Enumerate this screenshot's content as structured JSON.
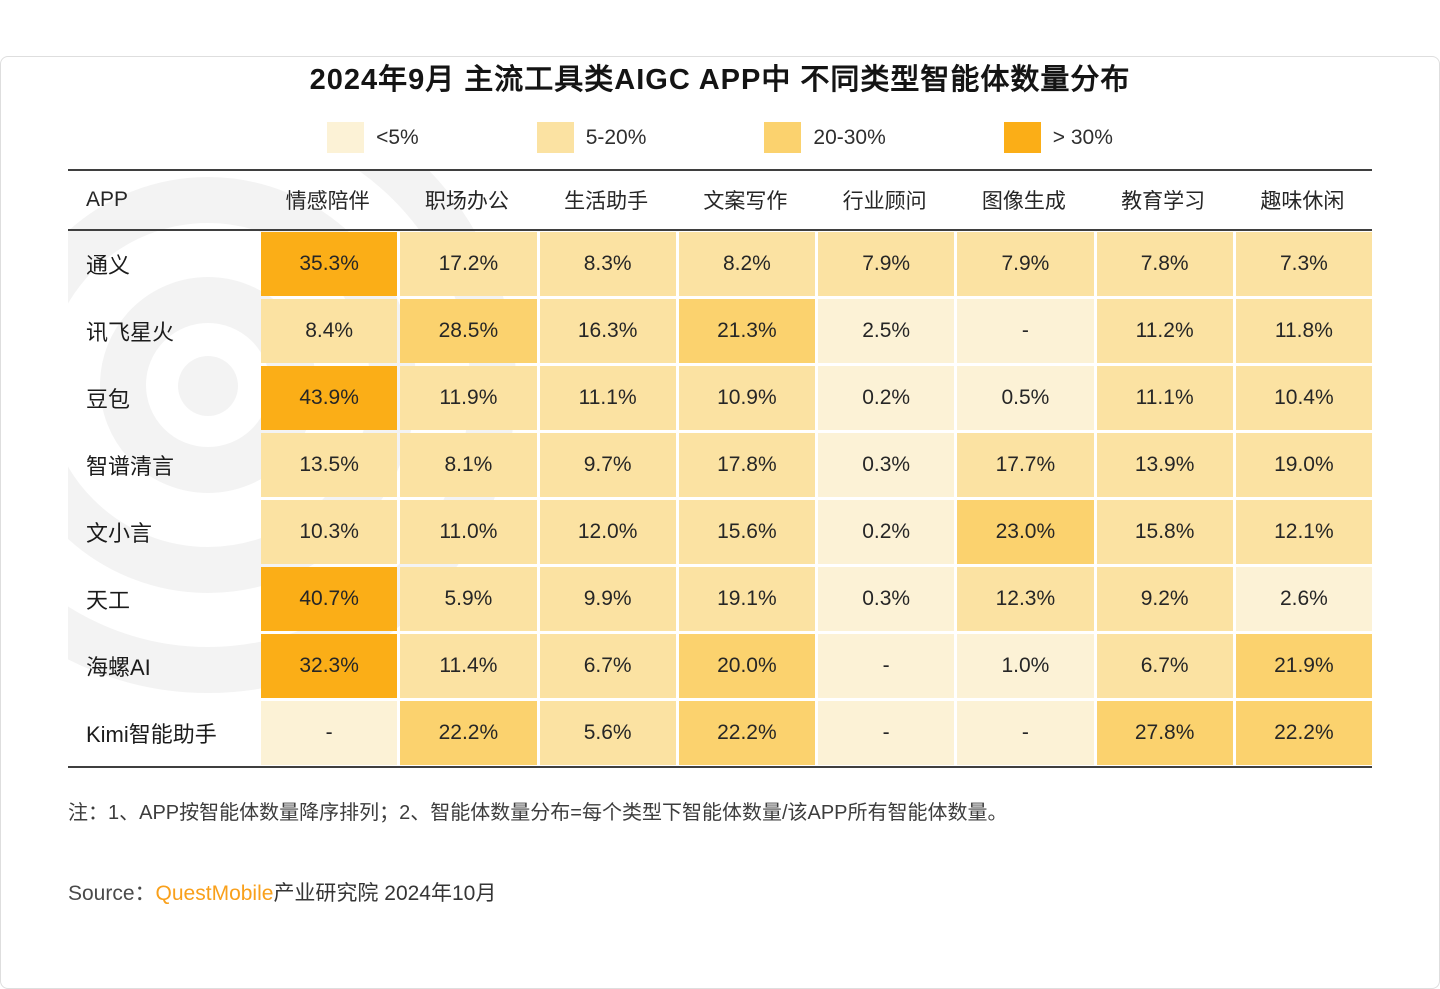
{
  "title": "2024年9月 主流工具类AIGC APP中 不同类型智能体数量分布",
  "legend": [
    {
      "label": "<5%",
      "color": "#FCF2D6"
    },
    {
      "label": "5-20%",
      "color": "#FBE2A2"
    },
    {
      "label": "20-30%",
      "color": "#FBD26E"
    },
    {
      "label": "> 30%",
      "color": "#FBAE17"
    }
  ],
  "chart_data": {
    "type": "heatmap",
    "title": "2024年9月 主流工具类AIGC APP中 不同类型智能体数量分布",
    "corner_label": "APP",
    "columns": [
      "情感陪伴",
      "职场办公",
      "生活助手",
      "文案写作",
      "行业顾问",
      "图像生成",
      "教育学习",
      "趣味休闲"
    ],
    "bands": [
      {
        "label": "<5%",
        "max": 5,
        "color": "#FCF2D6"
      },
      {
        "label": "5-20%",
        "max": 20,
        "color": "#FBE2A2"
      },
      {
        "label": "20-30%",
        "max": 30,
        "color": "#FBD26E"
      },
      {
        "label": "> 30%",
        "max": 1000,
        "color": "#FBAE17"
      }
    ],
    "rows": [
      {
        "app": "通义",
        "values": [
          "35.3%",
          "17.2%",
          "8.3%",
          "8.2%",
          "7.9%",
          "7.9%",
          "7.8%",
          "7.3%"
        ]
      },
      {
        "app": "讯飞星火",
        "values": [
          "8.4%",
          "28.5%",
          "16.3%",
          "21.3%",
          "2.5%",
          "-",
          "11.2%",
          "11.8%"
        ]
      },
      {
        "app": "豆包",
        "values": [
          "43.9%",
          "11.9%",
          "11.1%",
          "10.9%",
          "0.2%",
          "0.5%",
          "11.1%",
          "10.4%"
        ]
      },
      {
        "app": "智谱清言",
        "values": [
          "13.5%",
          "8.1%",
          "9.7%",
          "17.8%",
          "0.3%",
          "17.7%",
          "13.9%",
          "19.0%"
        ]
      },
      {
        "app": "文小言",
        "values": [
          "10.3%",
          "11.0%",
          "12.0%",
          "15.6%",
          "0.2%",
          "23.0%",
          "15.8%",
          "12.1%"
        ]
      },
      {
        "app": "天工",
        "values": [
          "40.7%",
          "5.9%",
          "9.9%",
          "19.1%",
          "0.3%",
          "12.3%",
          "9.2%",
          "2.6%"
        ]
      },
      {
        "app": "海螺AI",
        "values": [
          "32.3%",
          "11.4%",
          "6.7%",
          "20.0%",
          "-",
          "1.0%",
          "6.7%",
          "21.9%"
        ]
      },
      {
        "app": "Kimi智能助手",
        "values": [
          "-",
          "22.2%",
          "5.6%",
          "22.2%",
          "-",
          "-",
          "27.8%",
          "22.2%"
        ]
      }
    ]
  },
  "note": "注：1、APP按智能体数量降序排列；2、智能体数量分布=每个类型下智能体数量/该APP所有智能体数量。",
  "source": {
    "prefix": "Source：",
    "brand": "QuestMobile",
    "suffix": " 产业研究院 2024年10月",
    "brand_color": "#F9A01B"
  }
}
